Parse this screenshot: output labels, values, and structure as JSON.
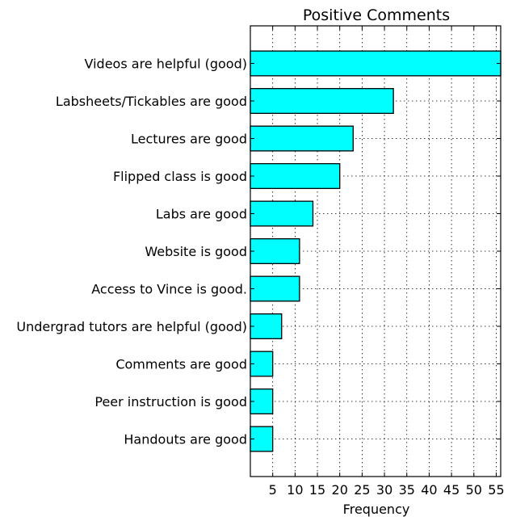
{
  "chart_data": {
    "type": "bar",
    "orientation": "horizontal",
    "title": "Positive Comments",
    "xlabel": "Frequency",
    "ylabel": "",
    "xlim": [
      0,
      56
    ],
    "xticks": [
      5,
      10,
      15,
      20,
      25,
      30,
      35,
      40,
      45,
      50,
      55
    ],
    "grid": true,
    "bar_color": "#00ffff",
    "categories": [
      "Videos are helpful (good)",
      "Labsheets/Tickables are good",
      "Lectures are good",
      "Flipped class is good",
      "Labs are good",
      "Website is good",
      "Access to Vince is good.",
      "Undergrad tutors are helpful (good)",
      "Comments are good",
      "Peer instruction is good",
      "Handouts are good"
    ],
    "values": [
      56,
      32,
      23,
      20,
      14,
      11,
      11,
      7,
      5,
      5,
      5
    ]
  }
}
